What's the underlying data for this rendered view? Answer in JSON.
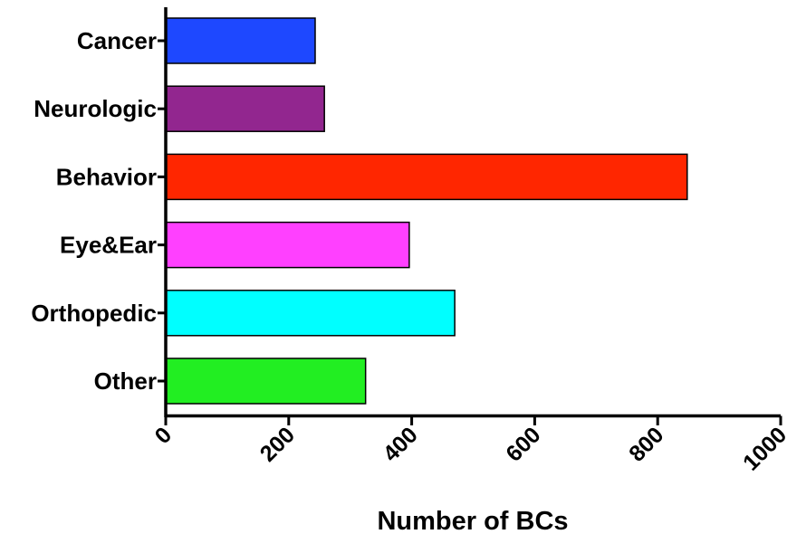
{
  "chart_data": {
    "type": "bar",
    "orientation": "horizontal",
    "categories": [
      "Cancer",
      "Neurologic",
      "Behavior",
      "Eye&Ear",
      "Orthopedic",
      "Other"
    ],
    "values": [
      243,
      258,
      848,
      396,
      470,
      325
    ],
    "colors": [
      "#1e48ff",
      "#92268f",
      "#ff2600",
      "#ff40ff",
      "#00ffff",
      "#22ee22"
    ],
    "xlabel": "Number of BCs",
    "ylabel": "",
    "xlim": [
      0,
      1000
    ],
    "xticks": [
      0,
      200,
      400,
      600,
      800,
      1000
    ],
    "grid": false
  }
}
